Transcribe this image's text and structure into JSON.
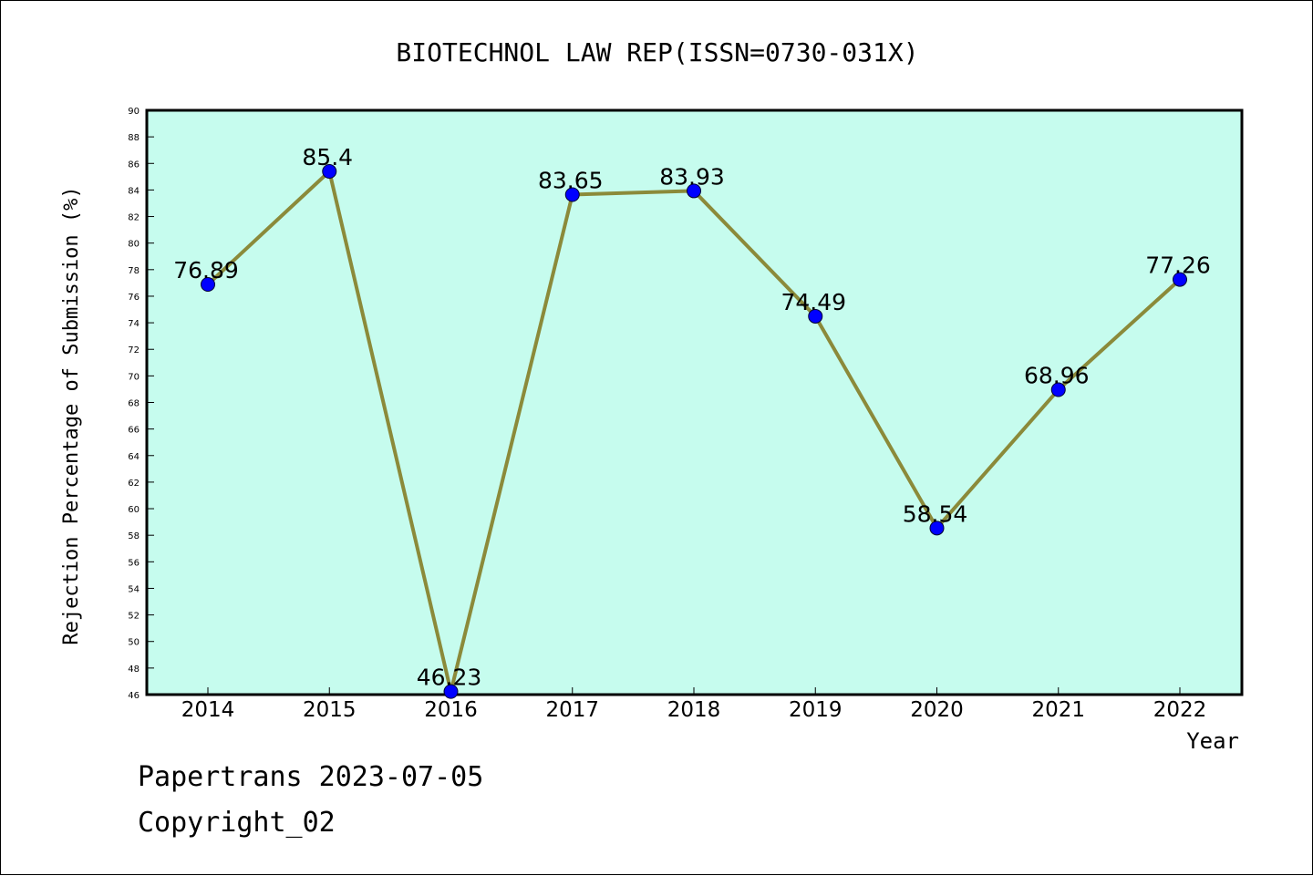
{
  "chart_data": {
    "type": "line",
    "title": "BIOTECHNOL LAW REP(ISSN=0730-031X)",
    "xlabel": "Year",
    "ylabel": "Rejection Percentage of Submission (%)",
    "categories": [
      "2014",
      "2015",
      "2016",
      "2017",
      "2018",
      "2019",
      "2020",
      "2021",
      "2022"
    ],
    "series": [
      {
        "values": [
          76.89,
          85.4,
          46.23,
          83.65,
          83.93,
          74.49,
          58.54,
          68.96,
          77.26
        ],
        "labels": [
          "76.89",
          "85.4",
          "46.23",
          "83.65",
          "83.93",
          "74.49",
          "58.54",
          "68.96",
          "77.26"
        ]
      }
    ],
    "ylim": [
      46,
      90
    ],
    "ytick_step": 2,
    "grid": false,
    "legend": "none",
    "colors": {
      "plot_background": "#c6fcee",
      "line": "#8b8a3a",
      "marker": "#0000ff"
    }
  },
  "footer": {
    "line1": "Papertrans 2023-07-05",
    "line2": "Copyright_02"
  }
}
